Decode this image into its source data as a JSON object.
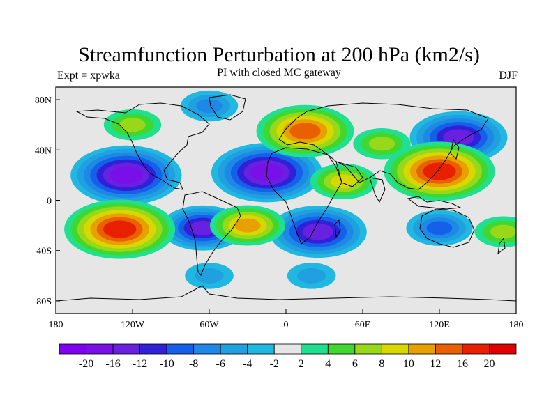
{
  "title": "Streamfunction Perturbation at 200 hPa (km2/s)",
  "subtitle_left": "Expt = xpwka",
  "subtitle_center": "PI with closed MC gateway",
  "subtitle_right": "DJF",
  "map": {
    "lon_range": [
      -180,
      180
    ],
    "lat_range": [
      -90,
      90
    ],
    "x_ticks": [
      {
        "value": -180,
        "label": "180"
      },
      {
        "value": -120,
        "label": "120W"
      },
      {
        "value": -60,
        "label": "60W"
      },
      {
        "value": 0,
        "label": "0"
      },
      {
        "value": 60,
        "label": "60E"
      },
      {
        "value": 120,
        "label": "120E"
      },
      {
        "value": 180,
        "label": "180"
      }
    ],
    "y_ticks": [
      {
        "value": 80,
        "label": "80N"
      },
      {
        "value": 40,
        "label": "40N"
      },
      {
        "value": 0,
        "label": "0"
      },
      {
        "value": -40,
        "label": "40S"
      },
      {
        "value": -80,
        "label": "80S"
      }
    ],
    "background_color": "#e6e6e6"
  },
  "colorbar": {
    "colors": [
      "#8000f0",
      "#7a10e8",
      "#6a20e0",
      "#3020d8",
      "#1460e8",
      "#1e88e6",
      "#20a0e0",
      "#20b8e0",
      "#e6e6e6",
      "#20e090",
      "#40d830",
      "#98d818",
      "#d8d800",
      "#e8a000",
      "#e86000",
      "#e82000",
      "#e00000"
    ],
    "labels": [
      "-20",
      "-16",
      "-12",
      "-10",
      "-8",
      "-6",
      "-4",
      "-2",
      "2",
      "4",
      "6",
      "8",
      "10",
      "12",
      "16",
      "20"
    ]
  },
  "chart_data": {
    "type": "heatmap",
    "title": "Streamfunction Perturbation at 200 hPa (km2/s)",
    "subtitle": "PI with closed MC gateway",
    "xlabel": "",
    "ylabel": "",
    "xlim": [
      -180,
      180
    ],
    "ylim": [
      -90,
      90
    ],
    "contour_levels": [
      -20,
      -16,
      -12,
      -10,
      -8,
      -6,
      -4,
      -2,
      2,
      4,
      6,
      8,
      10,
      12,
      16,
      20
    ],
    "features": [
      {
        "lon": -125,
        "lat": 20,
        "value": -18
      },
      {
        "lon": -15,
        "lat": 22,
        "value": -18
      },
      {
        "lon": 135,
        "lat": 50,
        "value": -15
      },
      {
        "lon": 25,
        "lat": -25,
        "value": -15
      },
      {
        "lon": -65,
        "lat": -22,
        "value": -12
      },
      {
        "lon": 120,
        "lat": -22,
        "value": -8
      },
      {
        "lon": -60,
        "lat": 75,
        "value": -6
      },
      {
        "lon": 20,
        "lat": -60,
        "value": -4
      },
      {
        "lon": -60,
        "lat": -60,
        "value": -4
      },
      {
        "lon": -130,
        "lat": -23,
        "value": 18
      },
      {
        "lon": 120,
        "lat": 23,
        "value": 18
      },
      {
        "lon": 15,
        "lat": 55,
        "value": 15
      },
      {
        "lon": 45,
        "lat": 15,
        "value": 8
      },
      {
        "lon": -30,
        "lat": -20,
        "value": 10
      },
      {
        "lon": -120,
        "lat": 60,
        "value": 6
      },
      {
        "lon": 75,
        "lat": 45,
        "value": 6
      },
      {
        "lon": 170,
        "lat": -25,
        "value": 6
      }
    ]
  }
}
